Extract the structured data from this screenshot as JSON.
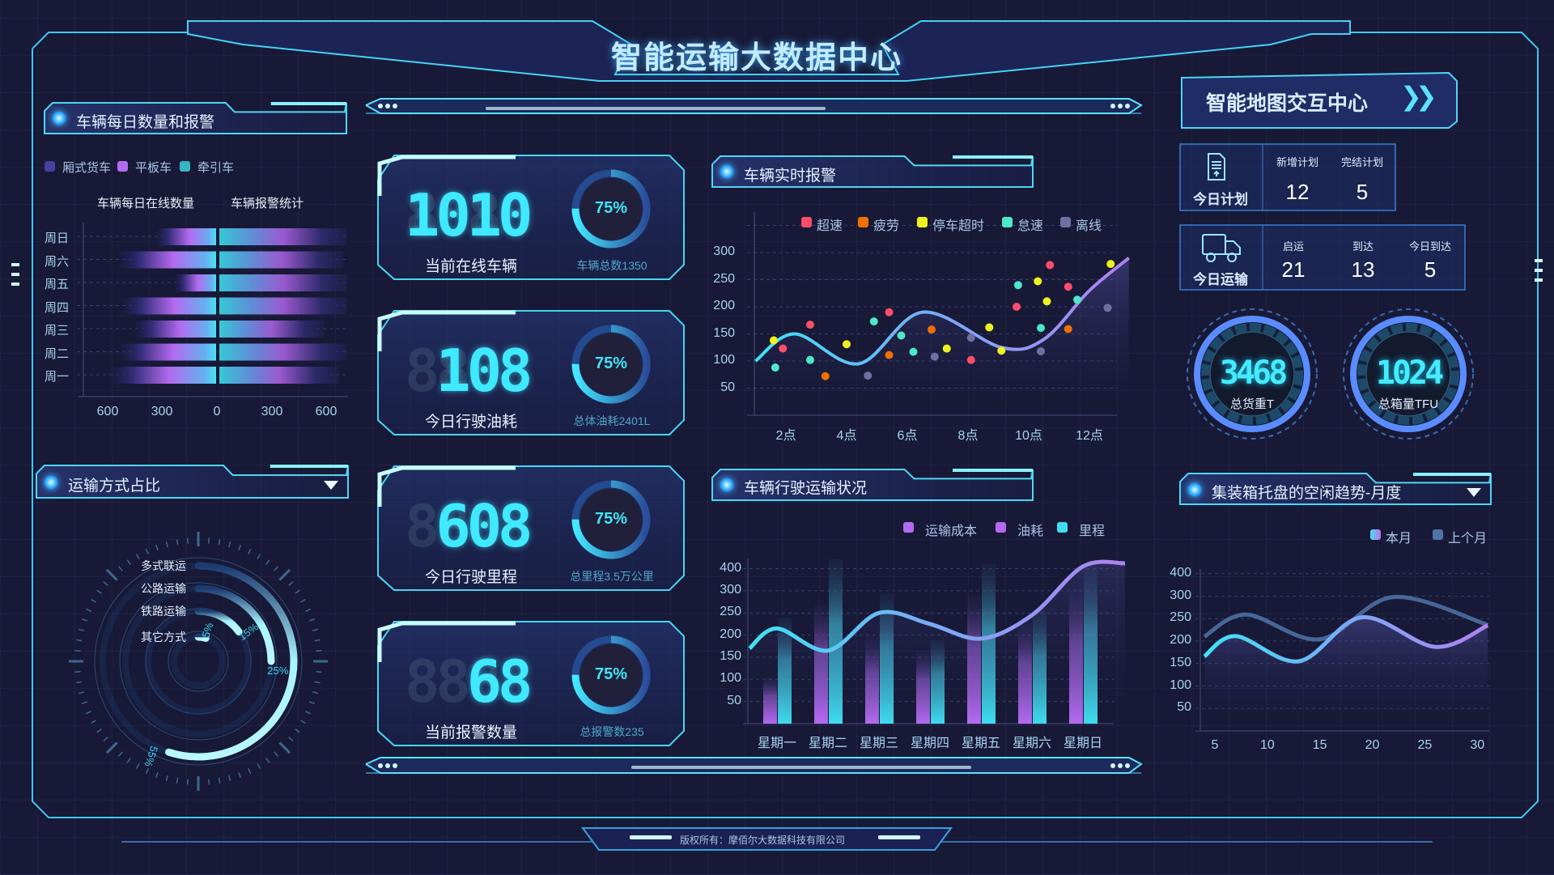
{
  "header": {
    "title": "智能运输大数据中心"
  },
  "footer": {
    "copyright": "版权所有：摩佰尔大数据科技有限公司"
  },
  "colors": {
    "accent": "#3fe9ff",
    "frame": "#3fc8f0",
    "background": "#171936",
    "purple": "#b46af0"
  },
  "left_top": {
    "title": "车辆每日数量和报警",
    "icon": "globe-icon"
  },
  "left_bottom": {
    "title": "运输方式占比",
    "icon": "globe-icon",
    "dropdown_icon": "triangle-down-icon"
  },
  "kpis": [
    {
      "value": "1010",
      "label": "当前在线车辆",
      "percent": "75%",
      "fill": 0.75,
      "sub": "车辆总数1350"
    },
    {
      "value": "108",
      "label": "今日行驶油耗",
      "percent": "75%",
      "fill": 0.75,
      "sub": "总体油耗2401L"
    },
    {
      "value": "608",
      "label": "今日行驶里程",
      "percent": "75%",
      "fill": 0.75,
      "sub": "总里程3.5万公里"
    },
    {
      "value": "68",
      "label": "当前报警数量",
      "percent": "75%",
      "fill": 0.75,
      "sub": "总报警数235"
    }
  ],
  "alarm": {
    "title": "车辆实时报警",
    "icon": "globe-icon"
  },
  "transport": {
    "title": "车辆行驶运输状况",
    "icon": "globe-icon"
  },
  "map_button": {
    "label": "智能地图交互中心",
    "icon": "double-chevron-right-icon"
  },
  "plan": {
    "title": "今日计划",
    "icon": "document-icon",
    "items": [
      {
        "label": "新增计划",
        "value": "12"
      },
      {
        "label": "完结计划",
        "value": "5"
      }
    ]
  },
  "shipping": {
    "title": "今日运输",
    "icon": "truck-icon",
    "items": [
      {
        "label": "启运",
        "value": "21"
      },
      {
        "label": "到达",
        "value": "13"
      },
      {
        "label": "今日到达",
        "value": "5"
      }
    ]
  },
  "gauges": [
    {
      "value": "3468",
      "label": "总货重T"
    },
    {
      "value": "1024",
      "label": "总箱量TFU"
    }
  ],
  "idle": {
    "title": "集装箱托盘的空闲趋势-月度",
    "icon": "globe-icon",
    "dropdown_icon": "triangle-down-icon"
  },
  "chart_data": [
    {
      "type": "bar",
      "orientation": "butterfly",
      "legend": [
        {
          "name": "厢式货车",
          "color": "#4a3fa0"
        },
        {
          "name": "平板车",
          "color": "#b46af0"
        },
        {
          "name": "牵引车",
          "color": "#36b6c0"
        }
      ],
      "subtitle_left": "车辆每日在线数量",
      "subtitle_right": "车辆报警统计",
      "categories": [
        "周日",
        "周六",
        "周五",
        "周四",
        "周三",
        "周二",
        "周一"
      ],
      "left_values": [
        326,
        525,
        224,
        510,
        443,
        525,
        570
      ],
      "right_values": [
        700,
        680,
        700,
        700,
        575,
        700,
        655
      ],
      "xticks_left": [
        "600",
        "300"
      ],
      "xtick_zero": "0",
      "xticks_right": [
        "300",
        "600"
      ],
      "xlim": [
        -600,
        600
      ]
    },
    {
      "type": "pie",
      "variant": "radial-bar",
      "categories": [
        "多式联运",
        "公路运输",
        "铁路运输",
        "其它方式"
      ],
      "values": [
        55,
        25,
        15,
        5
      ],
      "labels": [
        "55%",
        "25%",
        "15%",
        "5%"
      ]
    },
    {
      "type": "scatter",
      "xticks": [
        "2点",
        "4点",
        "6点",
        "8点",
        "10点",
        "12点"
      ],
      "yticks": [
        "50",
        "100",
        "150",
        "200",
        "250",
        "300"
      ],
      "ylim": [
        0,
        300
      ],
      "xlim": [
        1,
        13.3
      ],
      "grid": true,
      "legend_position": "top-right",
      "line": [
        [
          1,
          100
        ],
        [
          2.3,
          150
        ],
        [
          4.4,
          95
        ],
        [
          6.5,
          190
        ],
        [
          9.1,
          125
        ],
        [
          10.5,
          140
        ],
        [
          12,
          230
        ],
        [
          13.3,
          290
        ]
      ],
      "series": [
        {
          "name": "超速",
          "color": "#ff4d6a",
          "points": [
            [
              1.9,
              123
            ],
            [
              2.8,
              167
            ],
            [
              5.4,
              190
            ],
            [
              8.1,
              102
            ],
            [
              9.6,
              200
            ],
            [
              10.7,
              277
            ],
            [
              11.3,
              237
            ]
          ]
        },
        {
          "name": "疲劳",
          "color": "#f07000",
          "points": [
            [
              3.3,
              72
            ],
            [
              5.4,
              111
            ],
            [
              6.8,
              158
            ],
            [
              11.3,
              159
            ]
          ]
        },
        {
          "name": "停车超时",
          "color": "#eef21f",
          "points": [
            [
              1.6,
              138
            ],
            [
              4.0,
              131
            ],
            [
              7.3,
              123
            ],
            [
              8.7,
              162
            ],
            [
              9.1,
              119
            ],
            [
              10.3,
              247
            ],
            [
              10.6,
              210
            ],
            [
              12.7,
              279
            ]
          ]
        },
        {
          "name": "怠速",
          "color": "#4de8c8",
          "points": [
            [
              1.65,
              88
            ],
            [
              2.8,
              102
            ],
            [
              4.9,
              173
            ],
            [
              5.8,
              147
            ],
            [
              6.2,
              117
            ],
            [
              9.65,
              240
            ],
            [
              10.4,
              161
            ],
            [
              11.6,
              213
            ]
          ]
        },
        {
          "name": "离线",
          "color": "#7070a0",
          "points": [
            [
              4.7,
              73
            ],
            [
              6.9,
              108
            ],
            [
              8.1,
              143
            ],
            [
              10.4,
              118
            ],
            [
              12.6,
              198
            ]
          ]
        }
      ]
    },
    {
      "type": "bar",
      "grid": true,
      "legend_position": "top-right",
      "categories": [
        "星期一",
        "星期二",
        "星期三",
        "星期四",
        "星期五",
        "星期六",
        "星期日"
      ],
      "yticks": [
        "50",
        "100",
        "150",
        "200",
        "250",
        "300",
        "400"
      ],
      "series": [
        {
          "name": "运输成本",
          "color": "#b46af0",
          "kind": "line",
          "values": [
            215,
            165,
            250,
            225,
            192,
            245,
            355
          ]
        },
        {
          "name": "油耗",
          "color": "#b46af0",
          "kind": "bar",
          "values": [
            105,
            270,
            196,
            166,
            291,
            227,
            306
          ]
        },
        {
          "name": "里程",
          "color": "#3fdcef",
          "kind": "bar",
          "values": [
            239,
            372,
            294,
            190,
            361,
            257,
            355
          ]
        }
      ]
    },
    {
      "type": "line",
      "grid": true,
      "legend_position": "top-right",
      "xticks": [
        "5",
        "10",
        "15",
        "20",
        "25",
        "30"
      ],
      "yticks": [
        "50",
        "100",
        "150",
        "200",
        "250",
        "300",
        "400"
      ],
      "series": [
        {
          "name": "本月",
          "color": "#44e0f5",
          "points": [
            [
              4,
              166
            ],
            [
              7,
              211
            ],
            [
              13,
              155
            ],
            [
              19,
              253
            ],
            [
              26,
              187
            ],
            [
              31,
              235
            ]
          ]
        },
        {
          "name": "上个月",
          "color": "#4f74a8",
          "points": [
            [
              4,
              210
            ],
            [
              8,
              259
            ],
            [
              15,
              204
            ],
            [
              22,
              298
            ],
            [
              31,
              236
            ]
          ]
        }
      ]
    }
  ]
}
